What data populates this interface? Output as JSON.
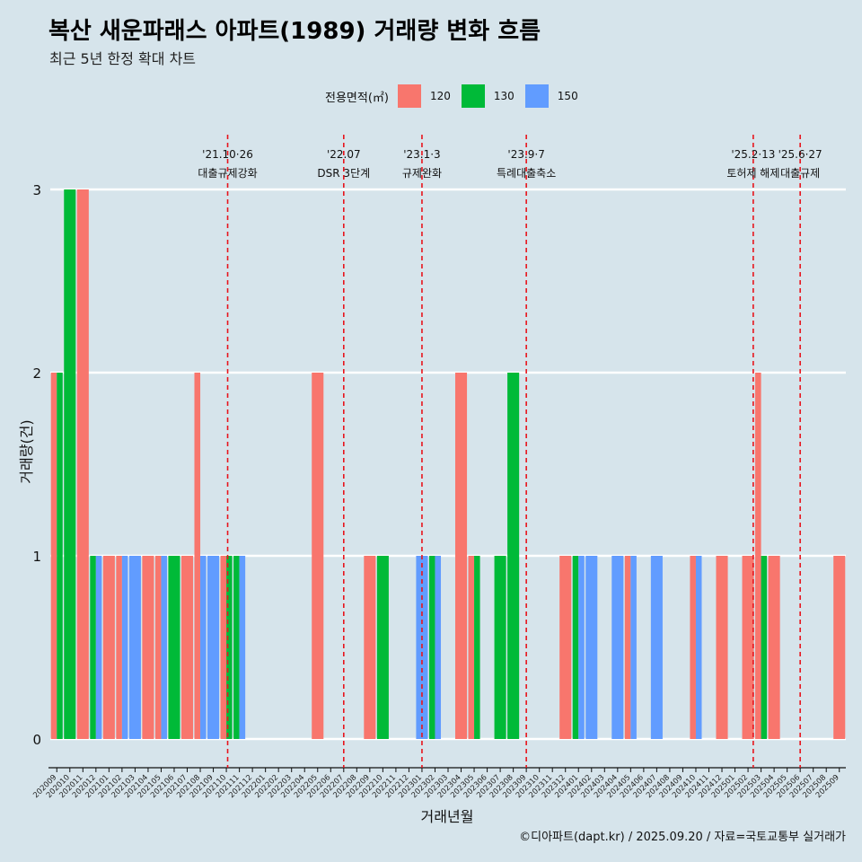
{
  "title": "복산 새운파래스 아파트(1989) 거래량 변화 흐름",
  "subtitle": "최근 5년 한정 확대 차트",
  "caption": "©디아파트(dapt.kr) / 2025.09.20 / 자료=국토교통부 실거래가",
  "legend": {
    "title": "전용면적(㎡)",
    "items": [
      {
        "label": "120",
        "color": "#f8766d"
      },
      {
        "label": "130",
        "color": "#00ba38"
      },
      {
        "label": "150",
        "color": "#619cff"
      }
    ]
  },
  "chart_data": {
    "type": "bar",
    "xlabel": "거래년월",
    "ylabel": "거래량(건)",
    "ylim": [
      0,
      3
    ],
    "yticks": [
      0,
      1,
      2,
      3
    ],
    "categories": [
      "202009",
      "202010",
      "202011",
      "202012",
      "202101",
      "202102",
      "202103",
      "202104",
      "202105",
      "202106",
      "202107",
      "202108",
      "202109",
      "202110",
      "202111",
      "202112",
      "202201",
      "202202",
      "202203",
      "202204",
      "202205",
      "202206",
      "202207",
      "202208",
      "202209",
      "202210",
      "202211",
      "202212",
      "202301",
      "202302",
      "202303",
      "202304",
      "202305",
      "202306",
      "202307",
      "202308",
      "202309",
      "202310",
      "202311",
      "202312",
      "202401",
      "202402",
      "202403",
      "202404",
      "202405",
      "202406",
      "202407",
      "202408",
      "202409",
      "202410",
      "202411",
      "202412",
      "202501",
      "202502",
      "202503",
      "202504",
      "202505",
      "202506",
      "202507",
      "202508",
      "202509"
    ],
    "series": [
      {
        "name": "120",
        "color": "#f8766d",
        "values": [
          2,
          0,
          3,
          0,
          1,
          1,
          0,
          1,
          1,
          0,
          1,
          2,
          0,
          1,
          0,
          0,
          0,
          0,
          0,
          0,
          2,
          0,
          0,
          0,
          1,
          0,
          0,
          0,
          0,
          0,
          0,
          2,
          1,
          0,
          0,
          0,
          0,
          0,
          0,
          1,
          0,
          0,
          0,
          0,
          1,
          0,
          0,
          0,
          0,
          1,
          0,
          1,
          0,
          1,
          2,
          1,
          0,
          0,
          0,
          0,
          1
        ]
      },
      {
        "name": "130",
        "color": "#00ba38",
        "values": [
          2,
          3,
          0,
          1,
          0,
          0,
          0,
          0,
          0,
          1,
          0,
          0,
          0,
          1,
          1,
          0,
          0,
          0,
          0,
          0,
          0,
          0,
          0,
          0,
          0,
          1,
          0,
          0,
          0,
          1,
          0,
          0,
          1,
          0,
          1,
          2,
          0,
          0,
          0,
          0,
          1,
          0,
          0,
          0,
          0,
          0,
          0,
          0,
          0,
          0,
          0,
          0,
          0,
          0,
          1,
          0,
          0,
          0,
          0,
          0,
          0
        ]
      },
      {
        "name": "150",
        "color": "#619cff",
        "values": [
          0,
          0,
          0,
          1,
          0,
          1,
          1,
          0,
          1,
          0,
          0,
          1,
          1,
          0,
          1,
          0,
          0,
          0,
          0,
          0,
          0,
          0,
          0,
          0,
          0,
          0,
          0,
          0,
          1,
          1,
          0,
          0,
          0,
          0,
          0,
          0,
          0,
          0,
          0,
          0,
          1,
          1,
          0,
          1,
          1,
          0,
          1,
          0,
          0,
          1,
          0,
          0,
          0,
          0,
          0,
          0,
          0,
          0,
          0,
          0,
          0
        ]
      }
    ],
    "events": [
      {
        "x": "202110",
        "line1": "'21.10·26",
        "line2": "대출규제강화",
        "offset": 0.1
      },
      {
        "x": "202207",
        "line1": "'22.07",
        "line2": "DSR 3단계",
        "offset": 0
      },
      {
        "x": "202301",
        "line1": "'23.1·3",
        "line2": "규제완화",
        "offset": 0
      },
      {
        "x": "202309",
        "line1": "'23.9·7",
        "line2": "특례대출축소",
        "offset": 0
      },
      {
        "x": "202502",
        "line1": "'25.2·13",
        "line2": "토허제 해제",
        "offset": 0.4
      },
      {
        "x": "202506",
        "line1": "'25.6·27",
        "line2": "대출규제",
        "offset": 0
      }
    ]
  }
}
